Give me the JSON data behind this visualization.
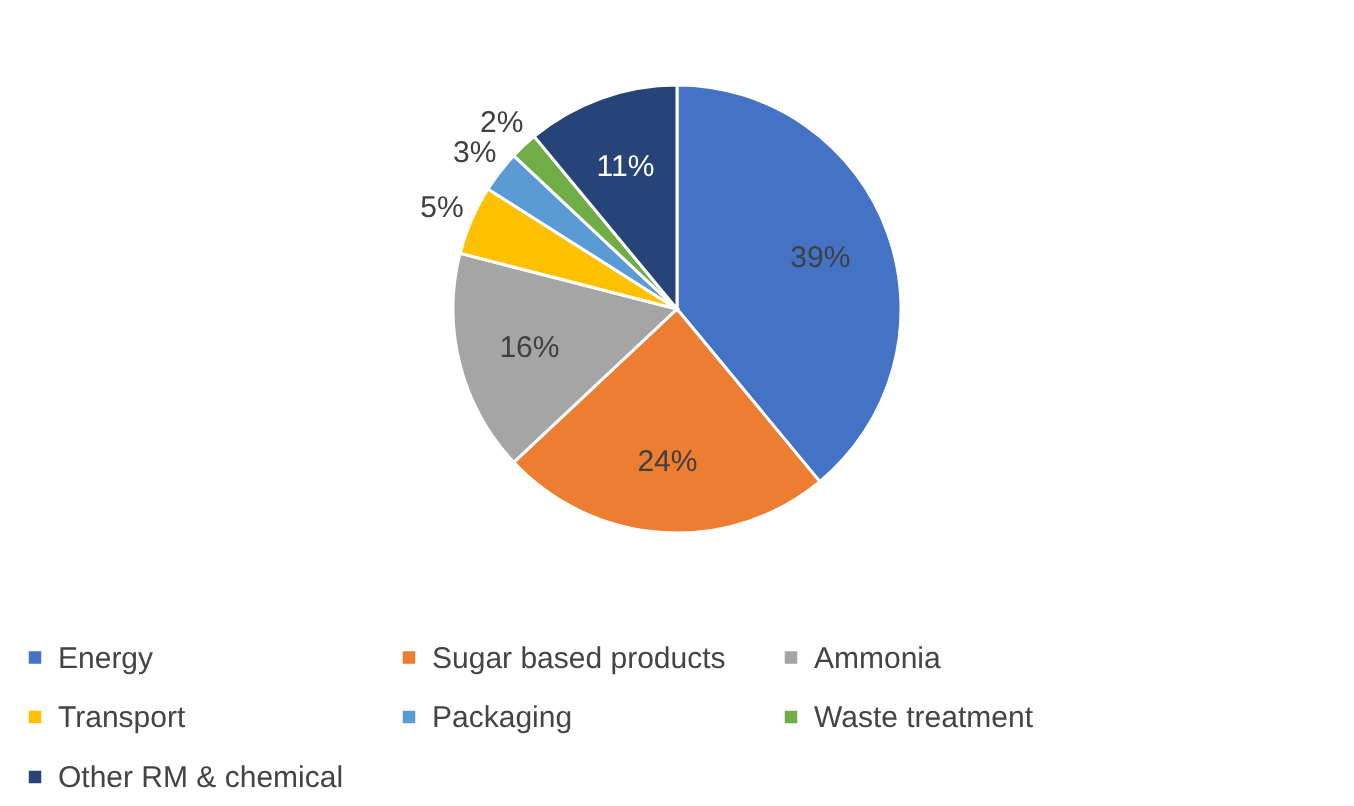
{
  "chart_data": {
    "type": "pie",
    "categories": [
      "Energy",
      "Sugar based products",
      "Ammonia",
      "Transport",
      "Packaging",
      "Waste treatment",
      "Other RM & chemical"
    ],
    "values": [
      39,
      24,
      16,
      5,
      3,
      2,
      11
    ],
    "colors": [
      "#4472c4",
      "#ed7d31",
      "#a5a5a5",
      "#ffc000",
      "#5b9bd5",
      "#70ad47",
      "#264478"
    ],
    "value_labels": [
      "39%",
      "24%",
      "16%",
      "5%",
      "3%",
      "2%",
      "11%"
    ],
    "legend": "bottom"
  }
}
